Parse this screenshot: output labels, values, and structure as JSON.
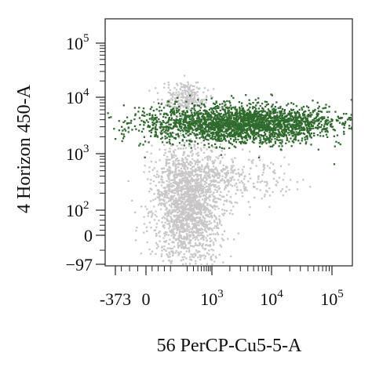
{
  "chart_data": {
    "type": "scatter",
    "subtype": "flow-cytometry-dot-plot",
    "xlabel": "56 PerCP-Cu5-5-A",
    "ylabel": "4 Horizon 450-A",
    "x_scale": "biexponential",
    "y_scale": "biexponential",
    "xlim": [
      -373,
      200000
    ],
    "ylim": [
      -97,
      200000
    ],
    "x_ticks": [
      {
        "value": -373,
        "label": "-373"
      },
      {
        "value": 0,
        "label": "0"
      },
      {
        "value": 1000,
        "label": "10",
        "exp": "3"
      },
      {
        "value": 10000,
        "label": "10",
        "exp": "4"
      },
      {
        "value": 100000,
        "label": "10",
        "exp": "5"
      }
    ],
    "y_ticks": [
      {
        "value": -97,
        "label": "−97"
      },
      {
        "value": 0,
        "label": "0"
      },
      {
        "value": 100,
        "label": "10",
        "exp": "2"
      },
      {
        "value": 1000,
        "label": "10",
        "exp": "3"
      },
      {
        "value": 10000,
        "label": "10",
        "exp": "4"
      },
      {
        "value": 100000,
        "label": "10",
        "exp": "5"
      }
    ],
    "grid": false,
    "legend": "none",
    "series": [
      {
        "color": "#c8c6c6",
        "populations": [
          {
            "x_center": 200,
            "y_center": 130,
            "count": 1800
          },
          {
            "x_center": 150,
            "y_center": 10000,
            "count": 250
          },
          {
            "x_center": 1500,
            "y_center": 400,
            "count": 350
          }
        ]
      },
      {
        "color": "#2e6b2c",
        "populations": [
          {
            "x_center": 3000,
            "y_center": 3500,
            "count": 2600
          }
        ]
      }
    ]
  }
}
